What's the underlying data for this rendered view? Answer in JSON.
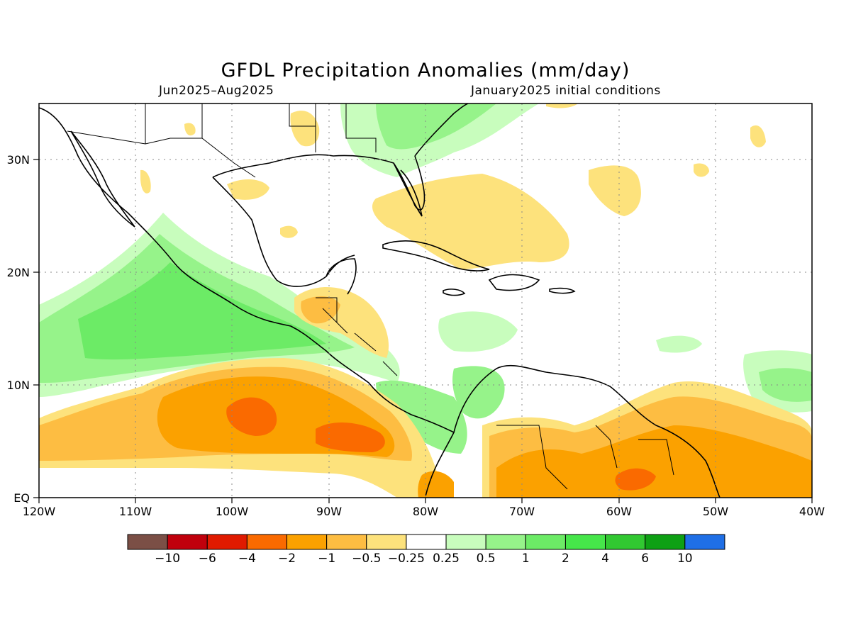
{
  "title": "GFDL Precipitation Anomalies (mm/day)",
  "subtitle_left": "Jun2025–Aug2025",
  "subtitle_right": "January2025 initial conditions",
  "axes": {
    "lon_labels": [
      "120W",
      "110W",
      "100W",
      "90W",
      "80W",
      "70W",
      "60W",
      "50W",
      "40W"
    ],
    "lat_labels": [
      "EQ",
      "10N",
      "20N",
      "30N"
    ]
  },
  "colorbar": {
    "colors": [
      "#7b4f46",
      "#c0000c",
      "#e01a00",
      "#fa6a00",
      "#fba100",
      "#fdbd42",
      "#fde27c",
      "#ffffff",
      "#c8fdbd",
      "#96f38a",
      "#6ceb66",
      "#46e64a",
      "#31c831",
      "#0ea014",
      "#1f6fe6"
    ],
    "labels": [
      "−10",
      "−6",
      "−4",
      "−2",
      "−1",
      "−0.5",
      "−0.25",
      "0.25",
      "0.5",
      "1",
      "2",
      "4",
      "6",
      "10"
    ]
  }
}
